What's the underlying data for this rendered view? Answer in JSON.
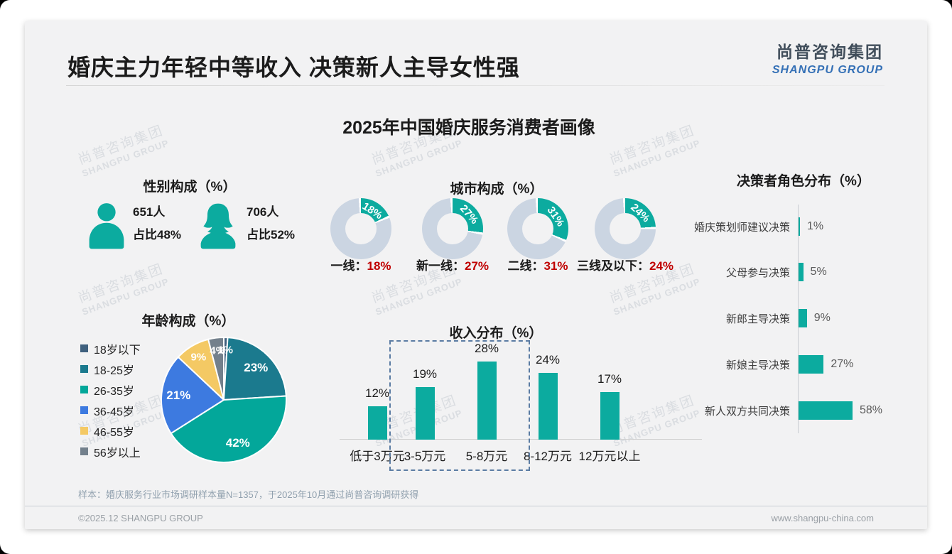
{
  "header": {
    "title": "婚庆主力年轻中等收入 决策新人主导女性强",
    "logo_cn": "尚普咨询集团",
    "logo_en": "SHANGPU GROUP"
  },
  "subtitle": "2025年中国婚庆服务消费者画像",
  "watermark": {
    "line1": "尚普咨询集团",
    "line2": "SHANGPU GROUP"
  },
  "colors": {
    "accent_teal": "#0cab9f",
    "donut_track": "#cbd5e2",
    "value_red": "#c00000",
    "logo_blue": "#3470b6",
    "dashed_box": "#5b7ca3",
    "card_bg": "#f2f2f3"
  },
  "chart_data": [
    {
      "id": "gender",
      "type": "pictogram",
      "title": "性别构成（%）",
      "items": [
        {
          "label": "男",
          "count": "651人",
          "share": "占比48%"
        },
        {
          "label": "女",
          "count": "706人",
          "share": "占比52%"
        }
      ]
    },
    {
      "id": "city",
      "type": "donut",
      "title": "城市构成（%）",
      "segment_color": "#0cab9f",
      "track_color": "#cbd5e2",
      "items": [
        {
          "label": "一线",
          "value": 18
        },
        {
          "label": "新一线",
          "value": 27
        },
        {
          "label": "二线",
          "value": 31
        },
        {
          "label": "三线及以下",
          "value": 24
        }
      ]
    },
    {
      "id": "decision",
      "type": "bar-horizontal",
      "title": "决策者角色分布（%）",
      "categories": [
        "婚庆策划师建议决策",
        "父母参与决策",
        "新郎主导决策",
        "新娘主导决策",
        "新人双方共同决策"
      ],
      "values": [
        1,
        5,
        9,
        27,
        58
      ],
      "bar_color": "#0cab9f",
      "xlim": [
        0,
        60
      ]
    },
    {
      "id": "age",
      "type": "pie",
      "title": "年龄构成（%）",
      "categories": [
        "18岁以下",
        "18-25岁",
        "26-35岁",
        "36-45岁",
        "46-55岁",
        "56岁以上"
      ],
      "values": [
        1,
        23,
        42,
        21,
        9,
        4
      ],
      "colors": [
        "#3f607e",
        "#1b7a8e",
        "#03a79a",
        "#3d7ae0",
        "#f4c964",
        "#73808c"
      ],
      "legend_position": "left"
    },
    {
      "id": "income",
      "type": "bar",
      "title": "收入分布（%）",
      "categories": [
        "低于3万元",
        "3-5万元",
        "5-8万元",
        "8-12万元",
        "12万元以上"
      ],
      "values": [
        12,
        19,
        28,
        24,
        17
      ],
      "bar_color": "#0cab9f",
      "highlight_box": {
        "start_index": 1,
        "end_index": 2
      }
    }
  ],
  "footnote": "样本：婚庆服务行业市场调研样本量N=1357，于2025年10月通过尚普咨询调研获得",
  "footer": {
    "left": "©2025.12 SHANGPU GROUP",
    "right": "www.shangpu-china.com"
  }
}
